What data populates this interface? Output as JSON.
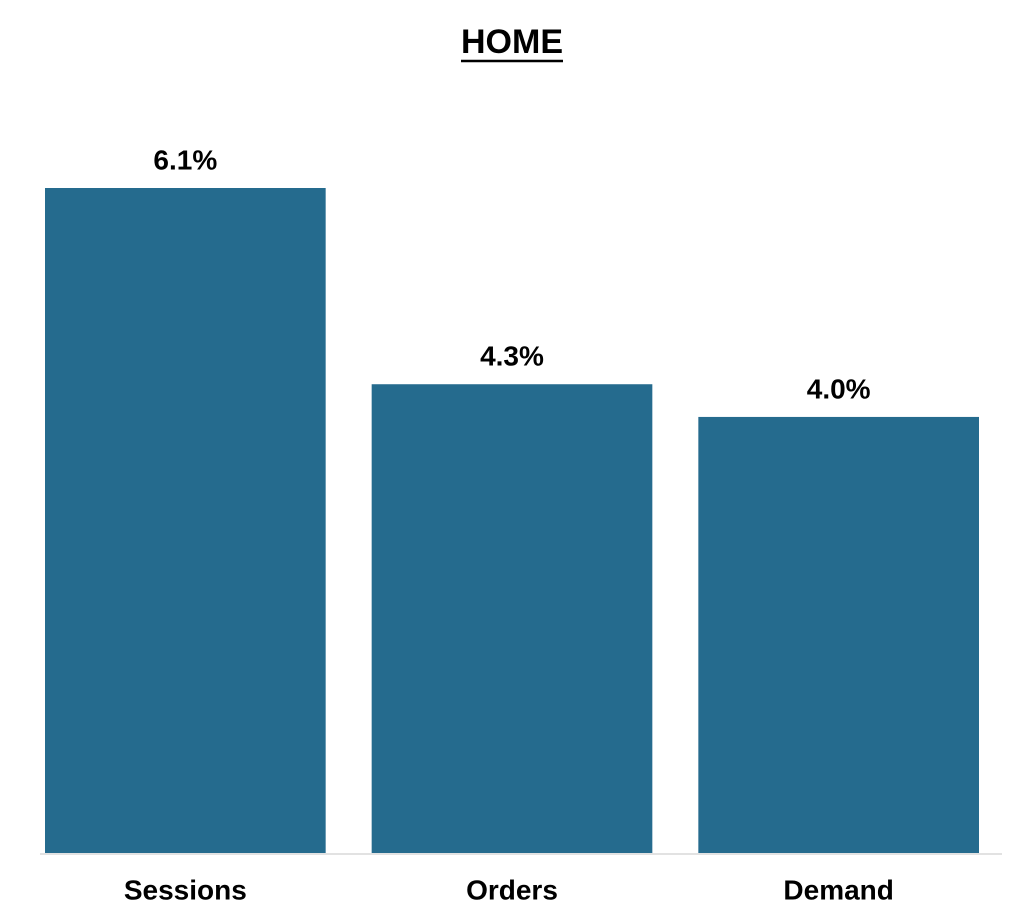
{
  "chart_data": {
    "type": "bar",
    "title": "HOME",
    "categories": [
      "Sessions",
      "Orders",
      "Demand"
    ],
    "values": [
      6.1,
      4.3,
      4.0
    ],
    "value_labels": [
      "6.1%",
      "4.3%",
      "4.0%"
    ],
    "color": "#256b8e"
  }
}
